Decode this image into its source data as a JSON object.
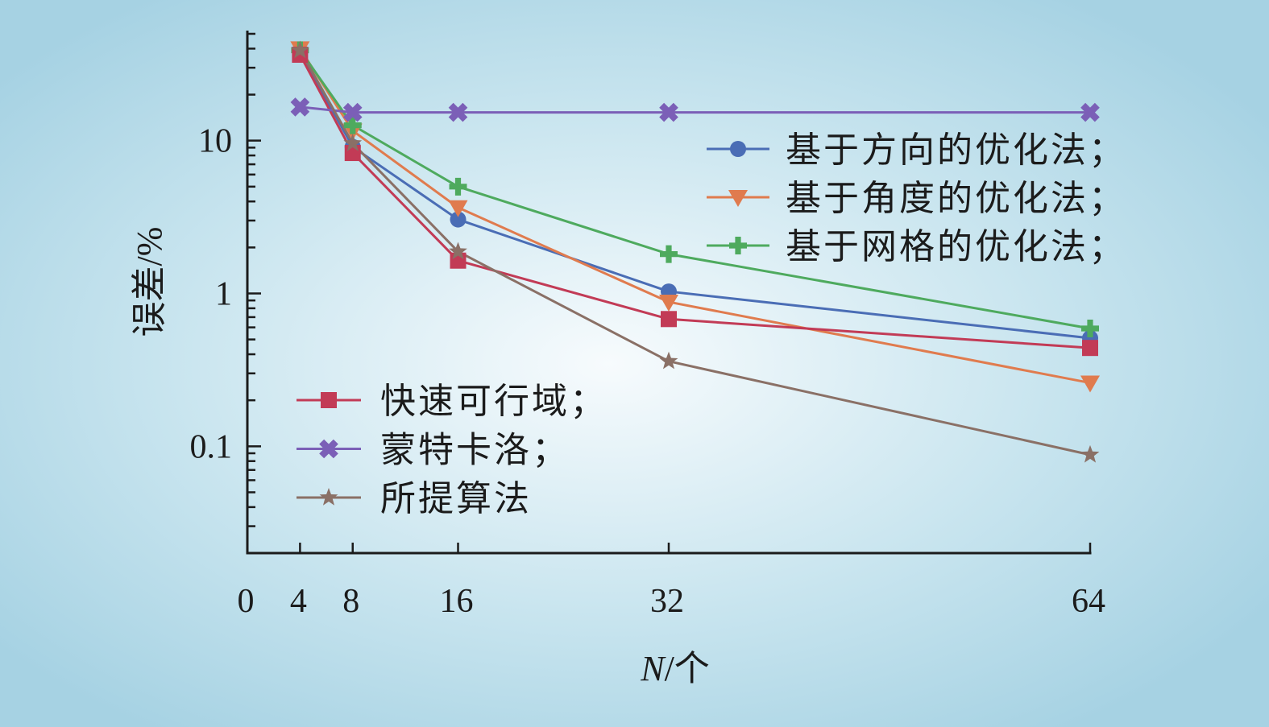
{
  "chart_data": {
    "type": "line",
    "xlabel": "N/个",
    "ylabel": "误差/%",
    "x": [
      4,
      8,
      16,
      32,
      64
    ],
    "xlim": [
      0,
      64
    ],
    "ylim": [
      0.02,
      50
    ],
    "yscale": "log",
    "grid": false,
    "x_ticks": [
      0,
      4,
      8,
      16,
      32,
      64
    ],
    "x_tick_labels": [
      "0",
      "4",
      "8",
      "16",
      "32",
      "64"
    ],
    "y_ticks": [
      0.1,
      1,
      10
    ],
    "y_tick_labels": [
      "0.1",
      "1",
      "10"
    ],
    "legend": [
      {
        "position": "top-right",
        "series": [
          0,
          1,
          2
        ]
      },
      {
        "position": "lower-left",
        "series": [
          3,
          4,
          5
        ]
      }
    ],
    "series": [
      {
        "name": "基于方向的优化法；",
        "color": "#4a6db5",
        "marker": "circle",
        "values": [
          38,
          9.1,
          3.05,
          1.03,
          0.51
        ]
      },
      {
        "name": "基于角度的优化法；",
        "color": "#e07b4e",
        "marker": "triangle-down",
        "values": [
          40,
          11.6,
          3.65,
          0.88,
          0.26
        ]
      },
      {
        "name": "基于网格的优化法；",
        "color": "#4eaa5e",
        "marker": "plus",
        "values": [
          39,
          12.6,
          5.0,
          1.81,
          0.59
        ]
      },
      {
        "name": "快速可行域；",
        "color": "#c23b56",
        "marker": "square",
        "values": [
          36.5,
          8.3,
          1.64,
          0.68,
          0.44
        ]
      },
      {
        "name": "蒙特卡洛；",
        "color": "#7b5fb7",
        "marker": "x",
        "values": [
          16.6,
          15.3,
          15.3,
          15.3,
          15.3
        ]
      },
      {
        "name": "所提算法",
        "color": "#8a7066",
        "marker": "star",
        "values": [
          39,
          9.6,
          1.88,
          0.36,
          0.088
        ]
      }
    ]
  }
}
